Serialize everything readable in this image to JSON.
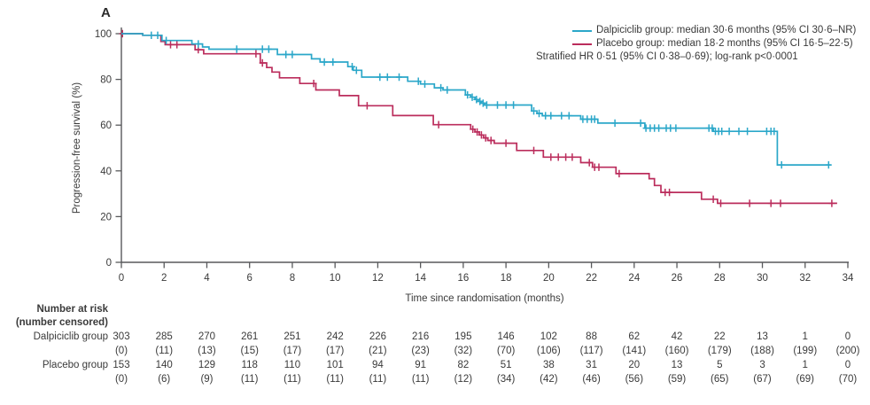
{
  "panel_label": "A",
  "colors": {
    "dalpiciclib": "#2ba7c9",
    "placebo": "#bb2d5c",
    "axis": "#58595b",
    "text": "#3a3a3a"
  },
  "legend": {
    "dalpiciclib": "Dalpiciclib group: median 30·6 months (95% CI 30·6–NR)",
    "placebo": "Placebo group: median 18·2 months (95% CI 16·5–22·5)",
    "stats": "Stratified HR 0·51 (95% CI 0·38–0·69); log-rank p<0·0001"
  },
  "chart_data": {
    "type": "line",
    "subtype": "kaplan-meier-step",
    "title": "",
    "xlabel": "Time since randomisation (months)",
    "ylabel": "Progression-free survival (%)",
    "xlim": [
      0,
      34
    ],
    "ylim": [
      0,
      100
    ],
    "x_ticks": [
      0,
      2,
      4,
      6,
      8,
      10,
      12,
      14,
      16,
      18,
      20,
      22,
      24,
      26,
      28,
      30,
      32,
      34
    ],
    "y_ticks": [
      0,
      20,
      40,
      60,
      80,
      100
    ],
    "grid": false,
    "legend_position": "top-right",
    "series": [
      {
        "name": "Dalpiciclib group",
        "color": "#2ba7c9",
        "steps": [
          [
            0,
            100
          ],
          [
            1.0,
            99.3
          ],
          [
            1.9,
            97
          ],
          [
            3.3,
            95.5
          ],
          [
            3.8,
            94.2
          ],
          [
            4.1,
            93.2
          ],
          [
            7.3,
            90.9
          ],
          [
            8.9,
            89
          ],
          [
            9.3,
            87.6
          ],
          [
            10.6,
            85.6
          ],
          [
            10.85,
            84
          ],
          [
            11.25,
            81
          ],
          [
            13.4,
            79.2
          ],
          [
            14.0,
            78
          ],
          [
            14.65,
            76.3
          ],
          [
            15.05,
            75.4
          ],
          [
            16.1,
            73.2
          ],
          [
            16.35,
            72.2
          ],
          [
            16.55,
            71.2
          ],
          [
            16.7,
            70.4
          ],
          [
            16.85,
            69.6
          ],
          [
            17.0,
            68.8
          ],
          [
            19.2,
            66.2
          ],
          [
            19.45,
            65.1
          ],
          [
            19.7,
            64.1
          ],
          [
            21.5,
            62.6
          ],
          [
            22.3,
            60.9
          ],
          [
            24.5,
            58.7
          ],
          [
            27.7,
            57.3
          ],
          [
            30.7,
            42.6
          ],
          [
            33.2,
            42.6
          ]
        ],
        "censor_times": [
          1.4,
          1.7,
          2.1,
          3.6,
          5.4,
          6.6,
          6.9,
          7.7,
          8.0,
          9.5,
          9.9,
          10.8,
          11.0,
          12.1,
          12.45,
          13.0,
          13.9,
          14.2,
          14.95,
          15.25,
          16.2,
          16.42,
          16.62,
          16.78,
          16.93,
          17.1,
          17.6,
          18.0,
          18.35,
          19.3,
          19.55,
          19.85,
          20.1,
          20.6,
          20.95,
          21.6,
          21.8,
          22.0,
          22.15,
          23.1,
          24.3,
          24.55,
          24.75,
          24.95,
          25.15,
          25.5,
          25.7,
          25.95,
          27.5,
          27.65,
          27.8,
          27.95,
          28.1,
          28.45,
          28.9,
          29.3,
          30.2,
          30.4,
          30.55,
          30.9,
          33.1
        ]
      },
      {
        "name": "Placebo group",
        "color": "#bb2d5c",
        "steps": [
          [
            0,
            100
          ],
          [
            1.0,
            99.3
          ],
          [
            1.85,
            96.6
          ],
          [
            2.05,
            95.2
          ],
          [
            3.45,
            93
          ],
          [
            3.85,
            91.2
          ],
          [
            6.5,
            87.2
          ],
          [
            6.8,
            85.2
          ],
          [
            7.05,
            83.2
          ],
          [
            7.4,
            80.7
          ],
          [
            8.35,
            78.2
          ],
          [
            9.1,
            75.4
          ],
          [
            10.2,
            72.9
          ],
          [
            11.1,
            68.5
          ],
          [
            12.7,
            64.2
          ],
          [
            14.6,
            60.2
          ],
          [
            16.35,
            58.2
          ],
          [
            16.55,
            57
          ],
          [
            16.75,
            55.7
          ],
          [
            16.95,
            54.4
          ],
          [
            17.15,
            53.3
          ],
          [
            17.45,
            52.1
          ],
          [
            18.5,
            48.9
          ],
          [
            19.75,
            46
          ],
          [
            21.5,
            43.6
          ],
          [
            22.05,
            41.6
          ],
          [
            23.15,
            38.8
          ],
          [
            24.7,
            36.6
          ],
          [
            24.95,
            33.6
          ],
          [
            25.25,
            30.6
          ],
          [
            27.15,
            27.6
          ],
          [
            27.9,
            25.8
          ],
          [
            33.5,
            25.8
          ]
        ],
        "censor_times": [
          0.05,
          2.3,
          2.6,
          3.6,
          6.3,
          6.6,
          9.0,
          11.5,
          14.85,
          16.45,
          16.65,
          16.85,
          17.05,
          17.3,
          18.0,
          19.3,
          20.1,
          20.45,
          20.8,
          21.1,
          21.9,
          22.15,
          22.35,
          23.3,
          25.45,
          25.65,
          27.7,
          28.05,
          29.4,
          30.4,
          30.85,
          33.25
        ]
      }
    ]
  },
  "risk_table": {
    "header_line1": "Number at risk",
    "header_line2": "(number censored)",
    "time_points": [
      0,
      2,
      4,
      6,
      8,
      10,
      12,
      14,
      16,
      18,
      20,
      22,
      24,
      26,
      28,
      30,
      32,
      34
    ],
    "rows": [
      {
        "label": "Dalpiciclib group",
        "at_risk": [
          "303",
          "285",
          "270",
          "261",
          "251",
          "242",
          "226",
          "216",
          "195",
          "146",
          "102",
          "88",
          "62",
          "42",
          "22",
          "13",
          "1",
          "0"
        ],
        "censored": [
          "(0)",
          "(11)",
          "(13)",
          "(15)",
          "(17)",
          "(17)",
          "(21)",
          "(23)",
          "(32)",
          "(70)",
          "(106)",
          "(117)",
          "(141)",
          "(160)",
          "(179)",
          "(188)",
          "(199)",
          "(200)"
        ]
      },
      {
        "label": "Placebo group",
        "at_risk": [
          "153",
          "140",
          "129",
          "118",
          "110",
          "101",
          "94",
          "91",
          "82",
          "51",
          "38",
          "31",
          "20",
          "13",
          "5",
          "3",
          "1",
          "0"
        ],
        "censored": [
          "(0)",
          "(6)",
          "(9)",
          "(11)",
          "(11)",
          "(11)",
          "(11)",
          "(11)",
          "(12)",
          "(34)",
          "(42)",
          "(46)",
          "(56)",
          "(59)",
          "(65)",
          "(67)",
          "(69)",
          "(70)"
        ]
      }
    ]
  }
}
